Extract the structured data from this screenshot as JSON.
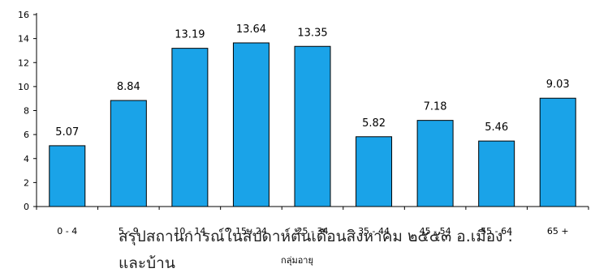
{
  "chart_data": {
    "type": "bar",
    "categories": [
      "0 - 4",
      "5 - 9",
      "10 - 14",
      "15 - 24",
      "25 - 34",
      "35 - 44",
      "45 - 54",
      "55 - 64",
      "65 +"
    ],
    "values": [
      5.07,
      8.84,
      13.19,
      13.64,
      13.35,
      5.82,
      7.18,
      5.46,
      9.03
    ],
    "data_labels": [
      "5.07",
      "8.84",
      "13.19",
      "13.64",
      "13.35",
      "5.82",
      "7.18",
      "5.46",
      "9.03"
    ],
    "xlabel": "กลุ่มอายุ",
    "ylabel": "",
    "ylim": [
      0,
      16
    ],
    "yticks": [
      0,
      2,
      4,
      6,
      8,
      10,
      12,
      14,
      16
    ],
    "grid": false,
    "bar_color": "#1aa3e8"
  },
  "overlay_text": {
    "line1": "สรุปสถานการณ์ในสัปดาห์ต้นเดือนสิงหาคม ๒๕๕๓ อ.เมือง :",
    "line2": "และบ้าน"
  }
}
